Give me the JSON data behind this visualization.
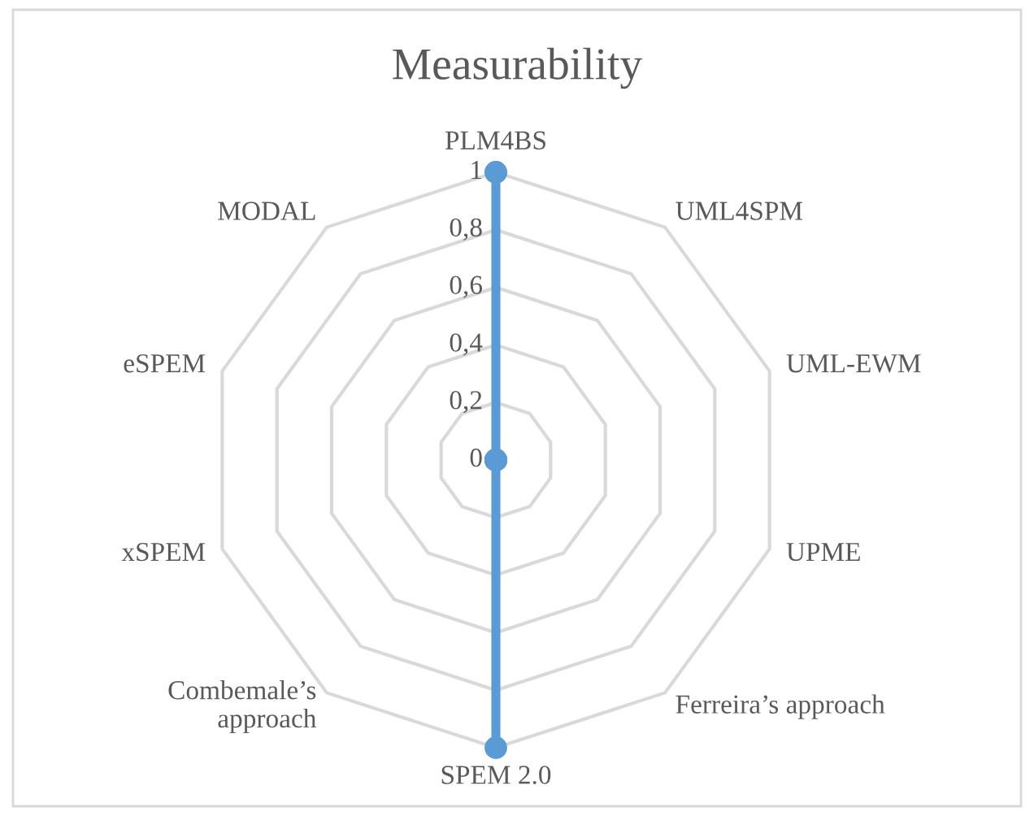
{
  "chart_data": {
    "type": "radar",
    "title": "Measurability",
    "categories": [
      "PLM4BS",
      "UML4SPM",
      "UML-EWM",
      "UPME",
      "Ferreira’s approach",
      "SPEM 2.0",
      "Combemale’s\napproach",
      "xSPEM",
      "eSPEM",
      "MODAL"
    ],
    "series": [
      {
        "color": "#5b9bd5",
        "values": [
          1,
          0,
          0,
          0,
          0,
          1,
          0,
          0,
          0,
          0
        ]
      }
    ],
    "ylim": [
      0,
      1
    ],
    "yticks": [
      0,
      {
        "value": 0.2,
        "label": "0,2"
      },
      {
        "value": 0.4,
        "label": "0,4"
      },
      {
        "value": 0.6,
        "label": "0,6"
      },
      {
        "value": 0.8,
        "label": "0,8"
      },
      1
    ],
    "grid": true,
    "marker": "circle"
  }
}
